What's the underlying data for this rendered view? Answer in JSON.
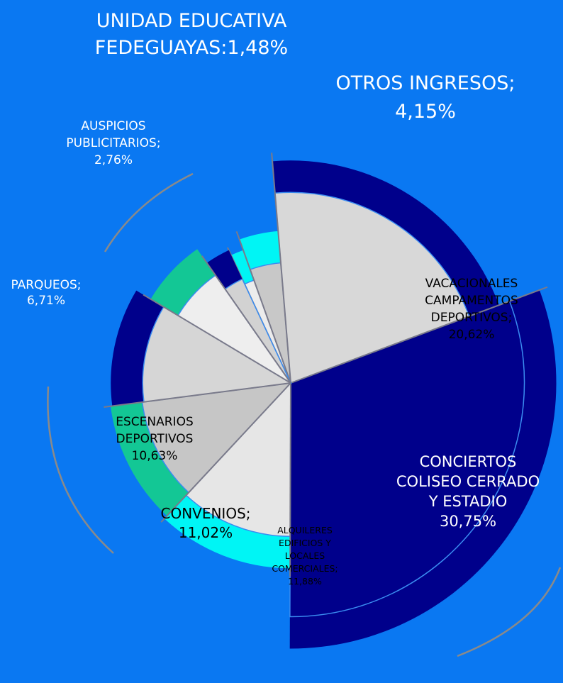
{
  "chart_data": {
    "type": "polar-pie",
    "categories": [
      [
        "UNIDAD EDUCATIVA",
        "FEDEGUAYAS:"
      ],
      [
        "OTROS INGRESOS;"
      ],
      [
        "VACACIONALES",
        "CAMPAMENTOS",
        "DEPORTIVOS;"
      ],
      [
        "CONCIERTOS",
        "COLISEO CERRADO",
        "Y ESTADIO"
      ],
      [
        "ALQUILERES",
        "EDIFICIOS Y",
        "LOCALES",
        "COMERCIALES;"
      ],
      [
        "CONVENIOS;"
      ],
      [
        "ESCENARIOS",
        "DEPORTIVOS"
      ],
      [
        "PARQUEOS;"
      ],
      [
        "AUSPICIOS",
        "PUBLICITARIOS;"
      ]
    ],
    "values": [
      1.48,
      4.15,
      20.62,
      30.75,
      11.88,
      11.02,
      10.63,
      6.71,
      2.76
    ],
    "value_labels": [
      "1,48%",
      "4,15%",
      "20,62%",
      "30,75%",
      "11,88%",
      "11,02%",
      "10,63%",
      "6,71%",
      "2,76%"
    ],
    "colors": [
      "#00f5f5",
      "#00f5f5",
      "#00008b",
      "#00008b",
      "#00f5f5",
      "#13c795",
      "#00008b",
      "#13c795",
      "#00008b"
    ],
    "inner_colors": [
      "#ececec",
      "#c8c8c8",
      "#d8d8d8",
      "#00008b",
      "#e6e6e6",
      "#c6c6c6",
      "#d6d6d6",
      "#eeeeee",
      "#d2d2d2"
    ]
  }
}
